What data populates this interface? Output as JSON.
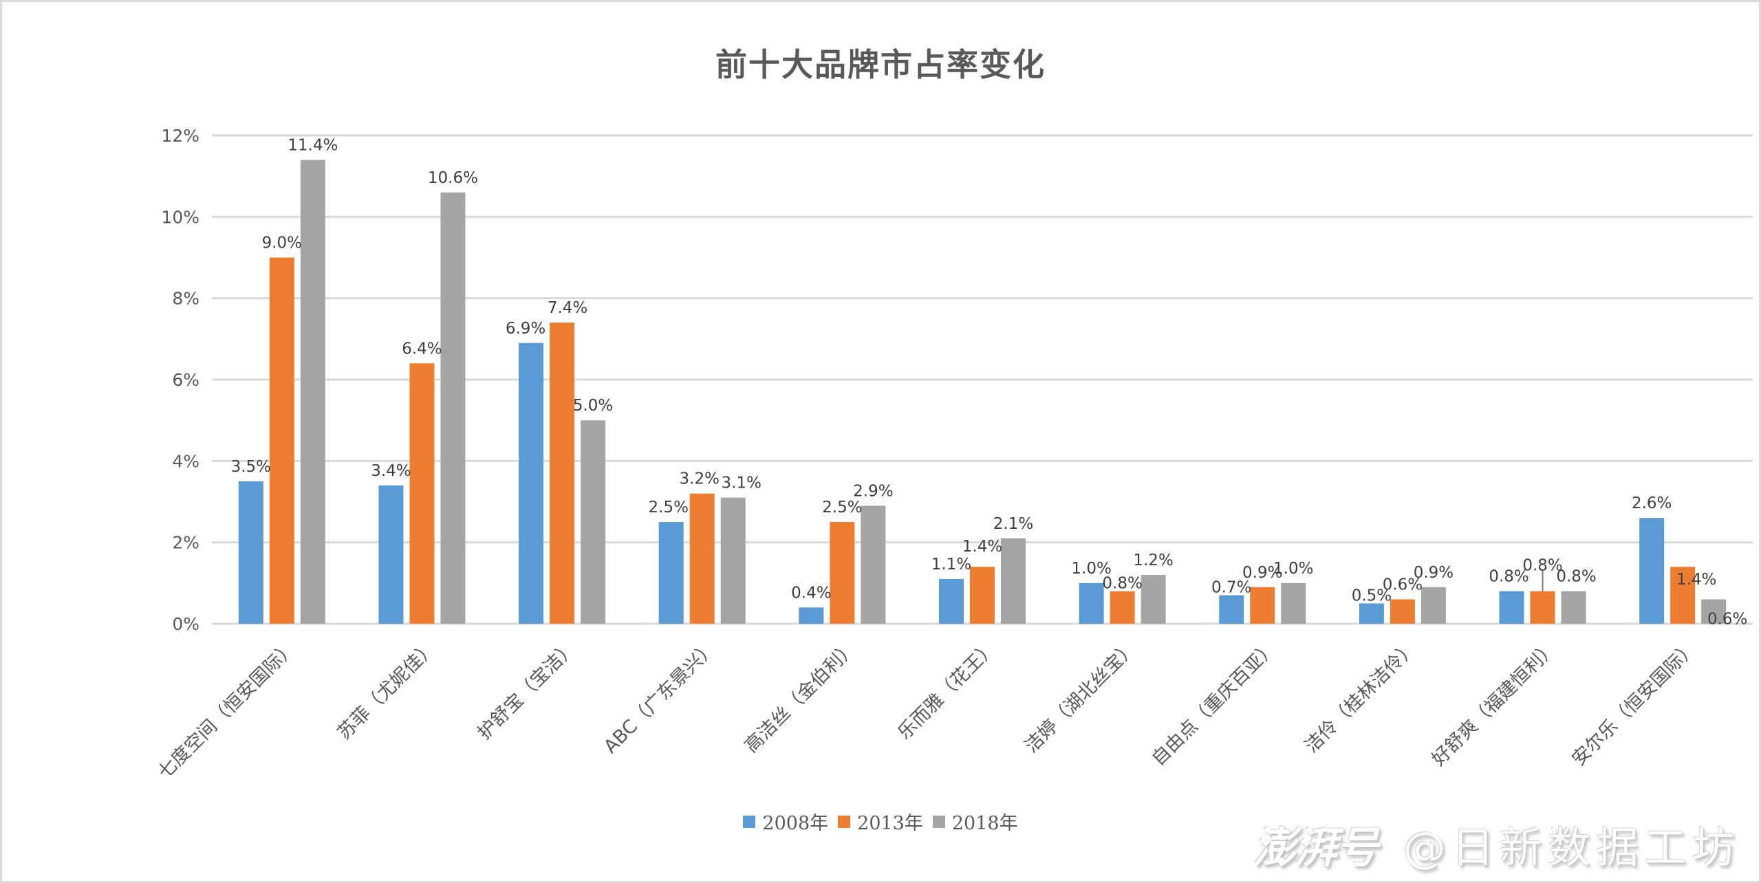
{
  "chart_data": {
    "type": "bar",
    "title": "前十大品牌市占率变化",
    "xlabel": "",
    "ylabel": "",
    "ylim": [
      0,
      12
    ],
    "yticks": [
      "0%",
      "2%",
      "4%",
      "6%",
      "8%",
      "10%",
      "12%"
    ],
    "ytick_values": [
      0,
      2,
      4,
      6,
      8,
      10,
      12
    ],
    "grid": true,
    "legend_position": "bottom",
    "categories": [
      "七度空间（恒安国际）",
      "苏菲（尤妮佳）",
      "护舒宝（宝洁）",
      "ABC（广东景兴）",
      "高洁丝（金伯利）",
      "乐而雅（花王）",
      "洁婷（湖北丝宝）",
      "自由点（重庆百亚）",
      "洁伶（桂林洁伶）",
      "好舒爽（福建恒利）",
      "安尔乐（恒安国际）"
    ],
    "series": [
      {
        "name": "2008年",
        "color": "#5b9bd5",
        "values": [
          3.5,
          3.4,
          6.9,
          2.5,
          0.4,
          1.1,
          1.0,
          0.7,
          0.5,
          0.8,
          2.6
        ],
        "labels": [
          "3.5%",
          "3.4%",
          "6.9%",
          "2.5%",
          "0.4%",
          "1.1%",
          "1.0%",
          "0.7%",
          "0.5%",
          "0.8%",
          "2.6%"
        ]
      },
      {
        "name": "2013年",
        "color": "#ed7d31",
        "values": [
          9.0,
          6.4,
          7.4,
          3.2,
          2.5,
          1.4,
          0.8,
          0.9,
          0.6,
          0.8,
          1.4
        ],
        "labels": [
          "9.0%",
          "6.4%",
          "7.4%",
          "3.2%",
          "2.5%",
          "1.4%",
          "0.8%",
          "0.9%",
          "0.6%",
          "0.8%",
          "1.4%"
        ]
      },
      {
        "name": "2018年",
        "color": "#a5a5a5",
        "values": [
          11.4,
          10.6,
          5.0,
          3.1,
          2.9,
          2.1,
          1.2,
          1.0,
          0.9,
          0.8,
          0.6
        ],
        "labels": [
          "11.4%",
          "10.6%",
          "5.0%",
          "3.1%",
          "2.9%",
          "2.1%",
          "1.2%",
          "1.0%",
          "0.9%",
          "0.8%",
          "0.6%"
        ]
      }
    ]
  },
  "legend": {
    "items": [
      {
        "label": "2008年",
        "color": "#5b9bd5"
      },
      {
        "label": "2013年",
        "color": "#ed7d31"
      },
      {
        "label": "2018年",
        "color": "#a5a5a5"
      }
    ]
  },
  "watermark": {
    "brand": "澎湃号",
    "handle": "@日新数据工坊"
  },
  "colors": {
    "gridline": "#d9d9d9",
    "axis_text": "#595959",
    "title_text": "#595959"
  }
}
